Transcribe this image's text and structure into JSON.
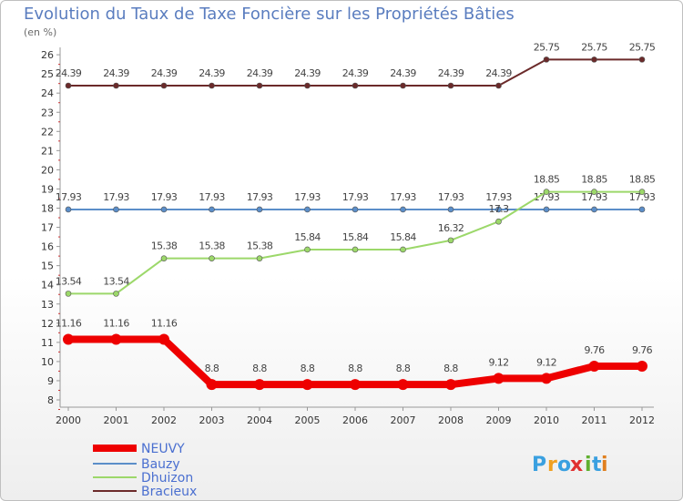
{
  "chart_data": {
    "type": "line",
    "title": "Evolution du Taux de Taxe Foncière sur les Propriétés Bâties",
    "subtitle": "(en %)",
    "xlabel": "",
    "ylabel": "",
    "ylim": [
      8,
      26
    ],
    "yticks": [
      "8",
      "9",
      "10",
      "11",
      "12",
      "13",
      "14",
      "15",
      "16",
      "17",
      "18",
      "19",
      "20",
      "21",
      "22",
      "23",
      "24",
      "25",
      "26"
    ],
    "categories": [
      "2000",
      "2001",
      "2002",
      "2003",
      "2004",
      "2005",
      "2006",
      "2007",
      "2008",
      "2009",
      "2010",
      "2011",
      "2012"
    ],
    "grid": false,
    "legend_position": "bottom-left",
    "series": [
      {
        "name": "Bracieux",
        "color": "#6b2a2a",
        "values": [
          24.39,
          24.39,
          24.39,
          24.39,
          24.39,
          24.39,
          24.39,
          24.39,
          24.39,
          24.39,
          25.75,
          25.75,
          25.75
        ],
        "labels": [
          "24.39",
          "24.39",
          "24.39",
          "24.39",
          "24.39",
          "24.39",
          "24.39",
          "24.39",
          "24.39",
          "24.39",
          "25.75",
          "25.75",
          "25.75"
        ]
      },
      {
        "name": "Bauzy",
        "color": "#5b8ec9",
        "values": [
          17.93,
          17.93,
          17.93,
          17.93,
          17.93,
          17.93,
          17.93,
          17.93,
          17.93,
          17.93,
          17.93,
          17.93,
          17.93
        ],
        "labels": [
          "17.93",
          "17.93",
          "17.93",
          "17.93",
          "17.93",
          "17.93",
          "17.93",
          "17.93",
          "17.93",
          "17.93",
          "17.93",
          "17.93",
          "17.93"
        ]
      },
      {
        "name": "Dhuizon",
        "color": "#9cd86a",
        "values": [
          13.54,
          13.54,
          15.38,
          15.38,
          15.38,
          15.84,
          15.84,
          15.84,
          16.32,
          17.3,
          18.85,
          18.85,
          18.85
        ],
        "labels": [
          "13.54",
          "13.54",
          "15.38",
          "15.38",
          "15.38",
          "15.84",
          "15.84",
          "15.84",
          "16.32",
          "17.3",
          "18.85",
          "18.85",
          "18.85"
        ]
      },
      {
        "name": "NEUVY",
        "color": "#ee0000",
        "values": [
          11.16,
          11.16,
          11.16,
          8.8,
          8.8,
          8.8,
          8.8,
          8.8,
          8.8,
          9.12,
          9.12,
          9.76,
          9.76
        ],
        "labels": [
          "11.16",
          "11.16",
          "11.16",
          "8.8",
          "8.8",
          "8.8",
          "8.8",
          "8.8",
          "8.8",
          "9.12",
          "9.12",
          "9.76",
          "9.76"
        ]
      }
    ],
    "legend": [
      "NEUVY",
      "Bauzy",
      "Dhuizon",
      "Bracieux"
    ]
  },
  "logo": {
    "letters": [
      "P",
      "r",
      "o",
      "x",
      "i",
      "t",
      "i"
    ],
    "colors": [
      "#3aa0e0",
      "#f0a020",
      "#3aa0e0",
      "#e03030",
      "#60b030",
      "#3aa0e0",
      "#e08020"
    ]
  }
}
